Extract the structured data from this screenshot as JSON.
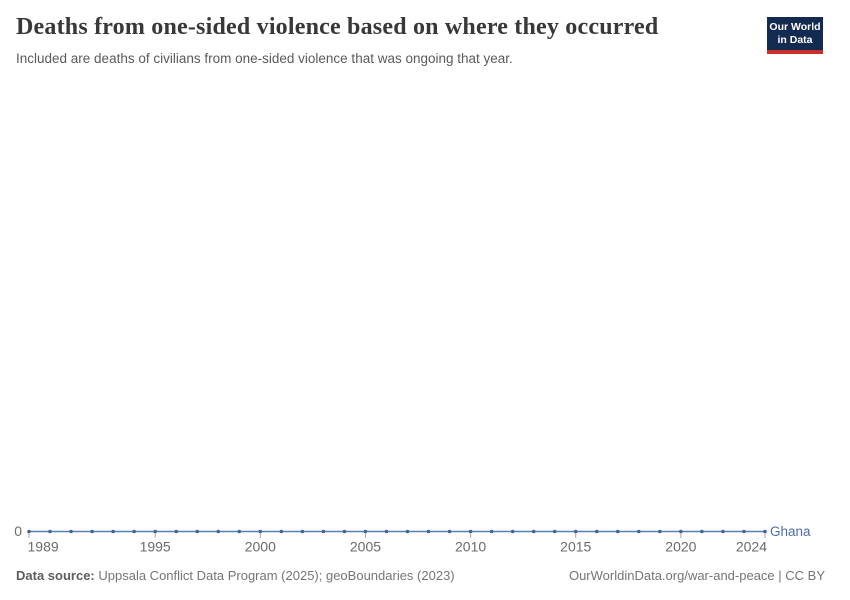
{
  "header": {
    "title": "Deaths from one-sided violence based on where they occurred",
    "subtitle": "Included are deaths of civilians from one-sided violence that was ongoing that year."
  },
  "logo": {
    "line1": "Our World",
    "line2": "in Data",
    "bg_color": "#132b50",
    "accent_color": "#c9302c"
  },
  "chart_data": {
    "type": "line",
    "title": "Deaths from one-sided violence based on where they occurred",
    "xlabel": "",
    "ylabel": "",
    "ylim": [
      0,
      0
    ],
    "grid": false,
    "legend_position": "end-of-line",
    "x": [
      1989,
      1990,
      1991,
      1992,
      1993,
      1994,
      1995,
      1996,
      1997,
      1998,
      1999,
      2000,
      2001,
      2002,
      2003,
      2004,
      2005,
      2006,
      2007,
      2008,
      2009,
      2010,
      2011,
      2012,
      2013,
      2014,
      2015,
      2016,
      2017,
      2018,
      2019,
      2020,
      2021,
      2022,
      2023,
      2024
    ],
    "x_tick_labels": [
      1989,
      1995,
      2000,
      2005,
      2010,
      2015,
      2020,
      2024
    ],
    "y_ticks": [
      "0"
    ],
    "series": [
      {
        "name": "Ghana",
        "values": [
          0,
          0,
          0,
          0,
          0,
          0,
          0,
          0,
          0,
          0,
          0,
          0,
          0,
          0,
          0,
          0,
          0,
          0,
          0,
          0,
          0,
          0,
          0,
          0,
          0,
          0,
          0,
          0,
          0,
          0,
          0,
          0,
          0,
          0,
          0,
          0
        ],
        "color": "#5b7eb5",
        "dot_color": "#44629c",
        "label_color": "#4d6fa7"
      }
    ],
    "axis_color": "#a7a7a7",
    "tick_label_color": "#6b6b6b"
  },
  "footer": {
    "source_label": "Data source:",
    "source_text": "Uppsala Conflict Data Program (2025); geoBoundaries (2023)",
    "credit": "OurWorldinData.org/war-and-peace | CC BY"
  }
}
